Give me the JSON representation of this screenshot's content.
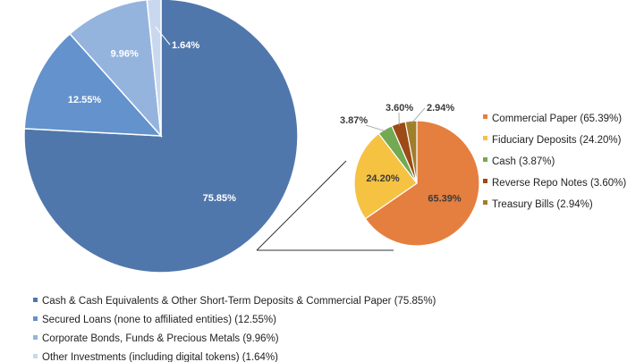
{
  "chart_data": [
    {
      "type": "pie",
      "title": "",
      "slices": [
        {
          "label": "Cash & Cash Equivalents & Other Short-Term Deposits & Commercial Paper (75.85%)",
          "value": 75.85,
          "data_label": "75.85%",
          "color": "#5077AB",
          "label_color": "#ffffff"
        },
        {
          "label": "Secured Loans (none to affiliated entities) (12.55%)",
          "value": 12.55,
          "data_label": "12.55%",
          "color": "#6392CC",
          "label_color": "#ffffff"
        },
        {
          "label": "Corporate Bonds, Funds & Precious Metals (9.96%)",
          "value": 9.96,
          "data_label": "9.96%",
          "color": "#94B4DE",
          "label_color": "#ffffff"
        },
        {
          "label": "Other Investments (including digital tokens) (1.64%)",
          "value": 1.64,
          "data_label": "1.64%",
          "color": "#C9D8EE",
          "label_color": "#ffffff"
        }
      ],
      "legend_position": "bottom"
    },
    {
      "type": "pie",
      "title": "",
      "slices": [
        {
          "label": "Commercial Paper (65.39%)",
          "value": 65.39,
          "data_label": "65.39%",
          "color": "#E57F3F",
          "label_color": "#3a3a3a"
        },
        {
          "label": "Fiduciary Deposits (24.20%)",
          "value": 24.2,
          "data_label": "24.20%",
          "color": "#F5C242",
          "label_color": "#3a3a3a"
        },
        {
          "label": "Cash (3.87%)",
          "value": 3.87,
          "data_label": "3.87%",
          "color": "#73A953",
          "label_color": "#3a3a3a"
        },
        {
          "label": "Reverse Repo Notes (3.60%)",
          "value": 3.6,
          "data_label": "3.60%",
          "color": "#9C4A17",
          "label_color": "#3a3a3a"
        },
        {
          "label": "Treasury Bills (2.94%)",
          "value": 2.94,
          "data_label": "2.94%",
          "color": "#A17E2A",
          "label_color": "#3a3a3a"
        }
      ],
      "legend_position": "right"
    }
  ]
}
